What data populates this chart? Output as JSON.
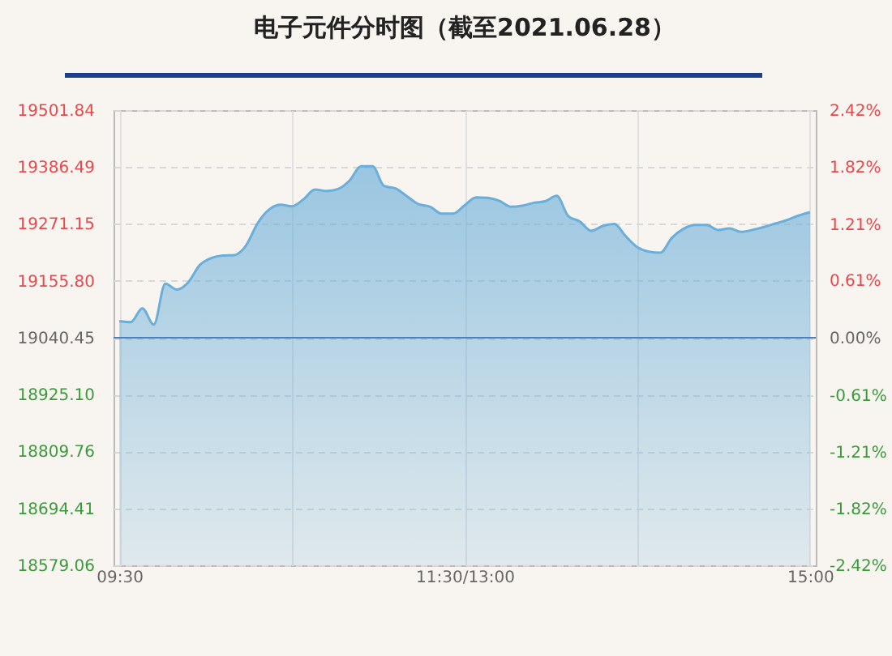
{
  "chart_data": {
    "type": "area",
    "title": "电子元件分时图（截至2021.06.28）",
    "categories": [
      "09:30",
      null,
      null,
      null,
      null,
      null,
      null,
      null,
      null,
      null,
      null,
      null,
      null,
      null,
      null,
      null,
      null,
      null,
      null,
      null,
      null,
      null,
      null,
      null,
      null,
      null,
      null,
      null,
      null,
      null,
      "11:30/13:00",
      null,
      null,
      null,
      null,
      null,
      null,
      null,
      null,
      null,
      null,
      null,
      null,
      null,
      null,
      null,
      null,
      null,
      null,
      null,
      null,
      null,
      null,
      null,
      null,
      null,
      null,
      null,
      null,
      null,
      "15:00"
    ],
    "ylim": [
      18579.06,
      19501.84
    ],
    "yticks": [
      18579.06,
      18694.41,
      18809.76,
      {
        "value": 18925.1,
        "label": "18925.10"
      },
      19040.45,
      {
        "value": 19155.8,
        "label": "19155.80"
      },
      19271.15,
      19386.49,
      19501.84
    ],
    "y2lim": [
      -2.42,
      2.42
    ],
    "y2ticks": [
      {
        "value": -2.42,
        "label": "-2.42%"
      },
      {
        "value": -1.82,
        "label": "-1.82%"
      },
      {
        "value": -1.21,
        "label": "-1.21%"
      },
      {
        "value": -0.61,
        "label": "-0.61%"
      },
      {
        "value": 0,
        "label": "0.00%"
      },
      {
        "value": 0.61,
        "label": "0.61%"
      },
      {
        "value": 1.21,
        "label": "1.21%"
      },
      {
        "value": 1.82,
        "label": "1.82%"
      },
      {
        "value": 2.42,
        "label": "2.42%"
      }
    ],
    "grid": true,
    "ref_lines": [
      {
        "axis": "y",
        "value": 19040.45,
        "color": "#4a80c0"
      }
    ],
    "series": [
      {
        "color": "#6aaed9",
        "values": [
          19074,
          19072,
          19100,
          19067,
          19150,
          19138,
          19153,
          19188,
          19202,
          19207,
          19208,
          19227,
          19272,
          19300,
          19310,
          19307,
          19321,
          19341,
          19338,
          19342,
          19359,
          19388,
          19388,
          19348,
          19343,
          19327,
          19311,
          19306,
          19292,
          19292,
          19309,
          19325,
          19324,
          19318,
          19306,
          19308,
          19314,
          19317,
          19328,
          19287,
          19276,
          19257,
          19267,
          19271,
          19246,
          19224,
          19215,
          19213,
          19243,
          19261,
          19269,
          19269,
          19259,
          19262,
          19255,
          19259,
          19265,
          19272,
          19279,
          19288,
          19295
        ]
      }
    ]
  }
}
